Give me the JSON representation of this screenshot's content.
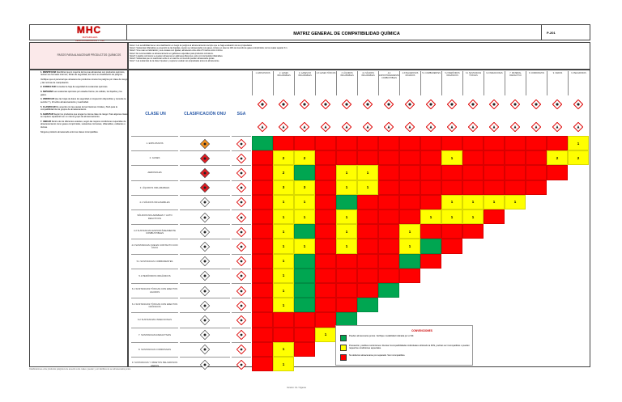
{
  "header": {
    "logo_text": "MHC",
    "logo_sub": "MATERIALES HIDROCARBUROS Y CIA",
    "title": "MATRIZ GENERAL DE COMPATIBILIDAD QUÍMICA",
    "code": "P-201"
  },
  "pasos_title": "PASOS PARA ALMACENAR PRODUCTOS QUÍMICOS",
  "notas": [
    "Nota 1: Los sensibilidad tienen una clasificación en riesgo de peligros al almacenamiento siempre que se haga evaluación de sus propiedades",
    "Nota 2: Sustancias inflamables a excepción de las líquidas, pueden ser almacenados con gases, incluso en caso de GPs de incendio de gases comprimidos; de los cuales separar 3 m.",
    "Nota 3: Si se usan en laboratorio y sus envases son iguales, almacenar entre ellos 2.5 metros como mínimo.",
    "Nota 4: Es recomendable su almacenamiento en gabinetes especiales para productos corrosivos.",
    "Nota 5: Líquidos corrosivos se pueden almacenar en gabinetes diferentes, junto con los líquidos inflamables.",
    "Nota 6: Sustancias que no reaccionan entre sí en caso de un incendio pueden almacenarse juntas.",
    "Nota 7: Las sustancias de la clase 9 pueden y requieren evaluar sus propiedades antes de almacenarse."
  ],
  "instrucciones": [
    {
      "title": "1. IDENTIFICAR",
      "text": "Identificar que lo mayoría de los que almacenan son productos químicos, revisar sus formatos internos, fichas de seguridad, así como su clasificación de peligros."
    },
    {
      "title": "",
      "text": "Verifique que el personal que almacena los productos conoce los peligros por clase de riesgo y las normas de manipulación."
    },
    {
      "title": "2. CONSULTAR",
      "text": "Consultar la hoja de seguridad de sustancias químicas."
    },
    {
      "title": "3. SEPARAR",
      "text": "Las sustancias químicas por estados físicos, los sólidos, los líquidos y los gases."
    },
    {
      "title": "4. VERIFICAR",
      "text": "Que las hojas de datos de seguridad en inspección disponibles y consulte la sección 7 y 10 sobre almacenamiento y reactividad."
    },
    {
      "title": "5. CLASIFICAR",
      "text": "De acuerdo con las pautas de las Naciones Unidas y SGA para la compatibilidad de los grupos de almacenamiento."
    },
    {
      "title": "6. AGRUPAR",
      "text": "Según los productos que tengan la misma clase de riesgo. Para algunas clases se requiere separación en un mismo grupo de almacenamiento."
    },
    {
      "title": "7. UBICAR",
      "text": "Dentro de los diferentes estantes, según las mejores condiciones requeridas de almacenamiento como gases comprimidos, sustancias corrosivas, inflamables, oxidantes o tóxicas."
    },
    {
      "title": "",
      "text": "Ninguna producto almacenado entre las clases incompatibles."
    }
  ],
  "table_headers": {
    "clase_un": "CLASE UN",
    "clasificacion_onu": "CLASIFICACIÓN ONU",
    "sga": "SGA"
  },
  "columns": [
    "1. EXPLOSIVOS",
    "2. GASES INFLAMABLES",
    "2. GASES NO INFLAMABLES",
    "2.3 GASES TÓXICOS",
    "3. LÍQUIDOS INFLAMABLES",
    "4.1 SÓLIDOS INFLAMABLES",
    "4.2 ESPONTÁNEAMENTE COMBUSTIBLES",
    "4.3 PELIGROSOS MOJADOS",
    "5.1 COMBURENTES",
    "5.2 PERÓXIDOS ORGÁNICOS",
    "6.1 SUSTANCIAS TÓXICAS",
    "6.2 INFECCIOSAS",
    "7. MATERIAL RADIACTIVO",
    "8. CORROSIVOS",
    "9. VARIOS",
    "9. PELIGROSOS"
  ],
  "rows": [
    {
      "label": "1. EXPLOSIVOS",
      "cells": [
        "G",
        "R",
        "R",
        "R",
        "R",
        "R",
        "R",
        "R",
        "R",
        "R",
        "R",
        "R",
        "R",
        "R",
        "R",
        "Y1"
      ]
    },
    {
      "label": "2. GASES",
      "cells": [
        "R",
        "Y2",
        "Y2",
        "R",
        "R",
        "R",
        "R",
        "R",
        "R",
        "Y1",
        "R",
        "R",
        "R",
        "R",
        "Y2",
        "Y2"
      ]
    },
    {
      "label": "AEROSOLES",
      "cells": [
        "R",
        "Y2",
        "G",
        "R",
        "Y1",
        "Y1",
        "R",
        "R",
        "R",
        "R",
        "R",
        "R",
        "R",
        "R",
        "R"
      ]
    },
    {
      "label": "3. LÍQUIDOS INFLAMABLES",
      "cells": [
        "R",
        "Y3",
        "Y3",
        "R",
        "Y1",
        "Y1",
        "R",
        "R",
        "R",
        "R",
        "R",
        "R",
        "R",
        "R"
      ]
    },
    {
      "label": "4.1 SÓLIDOS INFLAMABLES",
      "cells": [
        "R",
        "Y1",
        "Y1",
        "R",
        "G",
        "R",
        "R",
        "R",
        "R",
        "Y1",
        "Y1",
        "Y1",
        "Y1"
      ]
    },
    {
      "label": "SÓLIDOS INFLAMABLES Y AUTO REACTIVOS",
      "cells": [
        "R",
        "Y1",
        "Y1",
        "R",
        "Y1",
        "R",
        "R",
        "R",
        "Y1",
        "Y1",
        "Y1",
        "R"
      ]
    },
    {
      "label": "4.2 SUSTANCIAS ESPONTÁNEAMENTE COMBUSTIBLES",
      "cells": [
        "R",
        "Y1",
        "G",
        "R",
        "Y1",
        "R",
        "R",
        "Y1",
        "R",
        "R",
        "R"
      ]
    },
    {
      "label": "4.3 SUSTANCIAS QUE EN CONTACTO CON AGUA",
      "cells": [
        "R",
        "Y1",
        "Y1",
        "R",
        "Y1",
        "R",
        "R",
        "Y1",
        "G",
        "R"
      ]
    },
    {
      "label": "5.1 SUSTANCIAS COMBURENTES",
      "cells": [
        "R",
        "Y1",
        "G",
        "R",
        "R",
        "R",
        "R",
        "G",
        "R"
      ]
    },
    {
      "label": "5.2 PERÓXIDOS ORGÁNICOS",
      "cells": [
        "R",
        "Y1",
        "G",
        "R",
        "R",
        "R",
        "R",
        "R"
      ]
    },
    {
      "label": "6.1 SUSTANCIAS TÓXICAS CON EFECTOS AGUDOS",
      "cells": [
        "R",
        "Y1",
        "G",
        "R",
        "R",
        "R",
        "G"
      ]
    },
    {
      "label": "6.1 SUSTANCIAS TÓXICAS CON EFECTOS CRÓNICOS",
      "cells": [
        "R",
        "Y1",
        "G",
        "R",
        "R",
        "G"
      ]
    },
    {
      "label": "6.2 SUSTANCIAS INFECCIOSAS",
      "cells": [
        "R",
        "R",
        "R",
        "R",
        "G"
      ]
    },
    {
      "label": "7. SUSTANCIAS RADIACTIVAS",
      "cells": [
        "R",
        "R",
        "R",
        "Y1"
      ]
    },
    {
      "label": "8. SUSTANCIAS CORROSIVAS",
      "cells": [
        "R",
        "Y1",
        "R"
      ]
    },
    {
      "label": "9. SUSTANCIAS Y OBJETOS PELIGROSOS VARIOS",
      "cells": [
        "R",
        "Y1"
      ]
    }
  ],
  "legend": {
    "title": "CONVENCIONES",
    "items": [
      {
        "color": "G",
        "text": "Pueden almacenarse juntos. Verifique mutabilidad indicada por el NF."
      },
      {
        "color": "Y",
        "text": "Precaución, posibles restricciones. Revisar incompatibilidades individuales utilizando la FDS, podrían ser incompatibles o pueden requerirse condiciones especiales."
      },
      {
        "color": "R",
        "text": "No deberían almacenarse por separado. Son incompatibles."
      }
    ]
  },
  "colors": {
    "red": "#ff0000",
    "green": "#00a651",
    "yellow": "#ffff00",
    "title_blue": "#2a5aa8"
  },
  "footer": {
    "left": "Clasificaciones entre productos peligrosos de acuerdo a los cuales, pueden y son factibles de ser almacenados juntos.",
    "center": "Versión: 01 / Vigente"
  }
}
